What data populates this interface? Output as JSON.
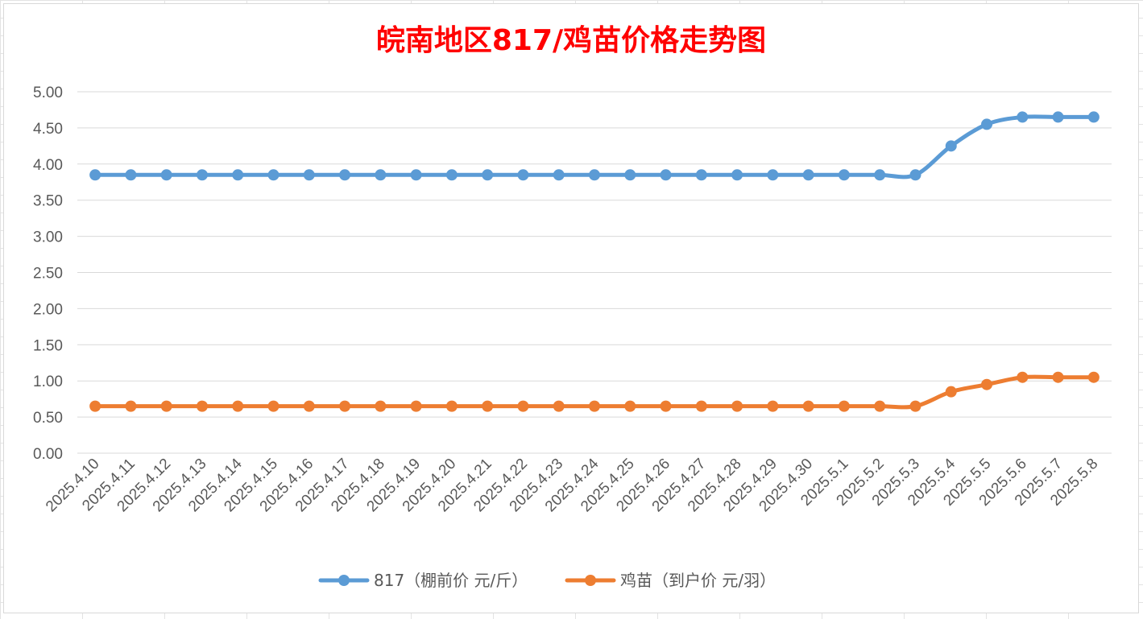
{
  "chart_data": {
    "type": "line",
    "title": "皖南地区817/鸡苗价格走势图",
    "title_color": "#ff0000",
    "categories": [
      "2025.4.10",
      "2025.4.11",
      "2025.4.12",
      "2025.4.13",
      "2025.4.14",
      "2025.4.15",
      "2025.4.16",
      "2025.4.17",
      "2025.4.18",
      "2025.4.19",
      "2025.4.20",
      "2025.4.21",
      "2025.4.22",
      "2025.4.23",
      "2025.4.24",
      "2025.4.25",
      "2025.4.26",
      "2025.4.27",
      "2025.4.28",
      "2025.4.29",
      "2025.4.30",
      "2025.5.1",
      "2025.5.2",
      "2025.5.3",
      "2025.5.4",
      "2025.5.5",
      "2025.5.6",
      "2025.5.7",
      "2025.5.8"
    ],
    "series": [
      {
        "name": "817（棚前价 元/斤）",
        "color": "#5b9bd5",
        "values": [
          3.85,
          3.85,
          3.85,
          3.85,
          3.85,
          3.85,
          3.85,
          3.85,
          3.85,
          3.85,
          3.85,
          3.85,
          3.85,
          3.85,
          3.85,
          3.85,
          3.85,
          3.85,
          3.85,
          3.85,
          3.85,
          3.85,
          3.85,
          3.85,
          4.25,
          4.55,
          4.65,
          4.65,
          4.65
        ]
      },
      {
        "name": "鸡苗（到户价 元/羽）",
        "color": "#ed7d31",
        "values": [
          0.65,
          0.65,
          0.65,
          0.65,
          0.65,
          0.65,
          0.65,
          0.65,
          0.65,
          0.65,
          0.65,
          0.65,
          0.65,
          0.65,
          0.65,
          0.65,
          0.65,
          0.65,
          0.65,
          0.65,
          0.65,
          0.65,
          0.65,
          0.65,
          0.85,
          0.95,
          1.05,
          1.05,
          1.05
        ]
      }
    ],
    "yticks": [
      "0.00",
      "0.50",
      "1.00",
      "1.50",
      "2.00",
      "2.50",
      "3.00",
      "3.50",
      "4.00",
      "4.50",
      "5.00"
    ],
    "ylim": [
      0,
      5
    ],
    "grid": true,
    "legend_position": "bottom",
    "smooth": true
  }
}
